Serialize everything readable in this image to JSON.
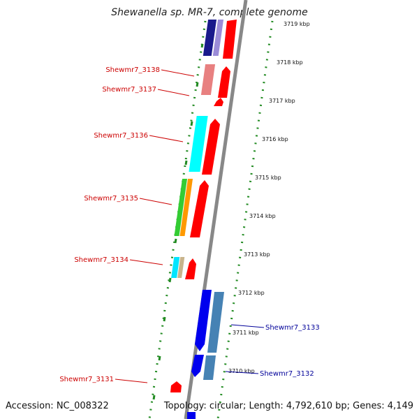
{
  "title": "Shewanella sp. MR-7, complete genome",
  "footer": {
    "accession": "Accession: NC_008322",
    "topology": "Topology: circular; Length: 4,792,610 bp; Genes: 4,149"
  },
  "kbp_labels": [
    "3719 kbp",
    "3718 kbp",
    "3717 kbp",
    "3716 kbp",
    "3715 kbp",
    "3714 kbp",
    "3713 kbp",
    "3712 kbp",
    "3711 kbp",
    "3710 kbp"
  ],
  "gene_labels": {
    "g3138": "Shewmr7_3138",
    "g3137": "Shewmr7_3137",
    "g3136": "Shewmr7_3136",
    "g3135": "Shewmr7_3135",
    "g3134": "Shewmr7_3134",
    "g3131": "Shewmr7_3131",
    "g3133": "Shewmr7_3133",
    "g3132": "Shewmr7_3132"
  },
  "colors": {
    "forward_label": "#cc0000",
    "reverse_label": "#000099",
    "forward_gene": "#ff0000",
    "reverse_gene": "#0000ee",
    "backbone": "#888888",
    "tick_dots": "#228B22"
  }
}
